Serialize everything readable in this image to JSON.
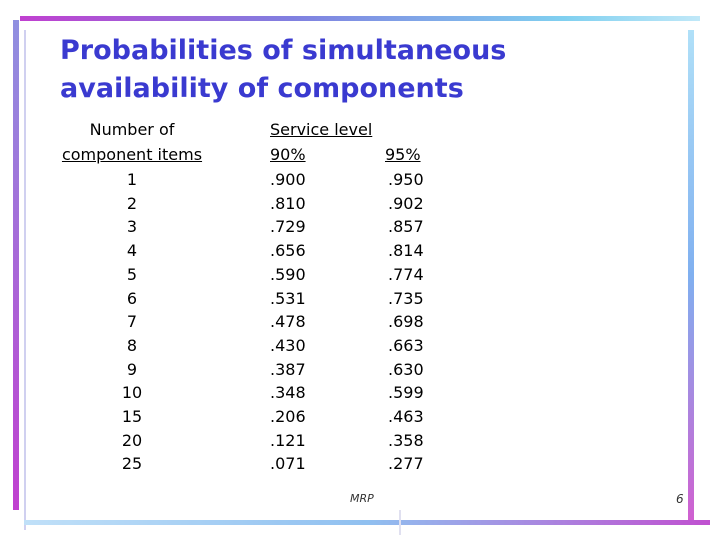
{
  "header": {
    "title_lines": [
      "Probabilities of simultaneous",
      "availability of components"
    ]
  },
  "table": {
    "first_column_header": [
      "Number of",
      "component items"
    ],
    "group_header": "Service level",
    "subheaders": [
      "90%",
      "95%"
    ],
    "rows": [
      [
        "1",
        ".900",
        ".950"
      ],
      [
        "2",
        ".810",
        ".902"
      ],
      [
        "3",
        ".729",
        ".857"
      ],
      [
        "4",
        ".656",
        ".814"
      ],
      [
        "5",
        ".590",
        ".774"
      ],
      [
        "6",
        ".531",
        ".735"
      ],
      [
        "7",
        ".478",
        ".698"
      ],
      [
        "8",
        ".430",
        ".663"
      ],
      [
        "9",
        ".387",
        ".630"
      ],
      [
        "10",
        ".348",
        ".599"
      ],
      [
        "15",
        ".206",
        ".463"
      ],
      [
        "20",
        ".121",
        ".358"
      ],
      [
        "25",
        ".071",
        ".277"
      ]
    ]
  },
  "footer": {
    "label": "MRP",
    "page": "6"
  }
}
